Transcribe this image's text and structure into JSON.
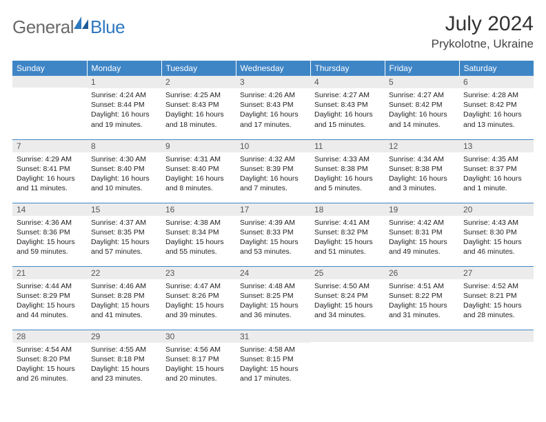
{
  "brand": {
    "part1": "General",
    "part2": "Blue"
  },
  "title": "July 2024",
  "location": "Prykolotne, Ukraine",
  "colors": {
    "header_bg": "#3e85c6",
    "header_text": "#ffffff",
    "daynum_bg": "#ececec",
    "border": "#3e85c6",
    "logo_gray": "#6a6a6a",
    "logo_blue": "#2f78bf"
  },
  "weekdays": [
    "Sunday",
    "Monday",
    "Tuesday",
    "Wednesday",
    "Thursday",
    "Friday",
    "Saturday"
  ],
  "first_weekday_index": 1,
  "days": [
    {
      "n": 1,
      "sunrise": "4:24 AM",
      "sunset": "8:44 PM",
      "daylight": "16 hours and 19 minutes."
    },
    {
      "n": 2,
      "sunrise": "4:25 AM",
      "sunset": "8:43 PM",
      "daylight": "16 hours and 18 minutes."
    },
    {
      "n": 3,
      "sunrise": "4:26 AM",
      "sunset": "8:43 PM",
      "daylight": "16 hours and 17 minutes."
    },
    {
      "n": 4,
      "sunrise": "4:27 AM",
      "sunset": "8:43 PM",
      "daylight": "16 hours and 15 minutes."
    },
    {
      "n": 5,
      "sunrise": "4:27 AM",
      "sunset": "8:42 PM",
      "daylight": "16 hours and 14 minutes."
    },
    {
      "n": 6,
      "sunrise": "4:28 AM",
      "sunset": "8:42 PM",
      "daylight": "16 hours and 13 minutes."
    },
    {
      "n": 7,
      "sunrise": "4:29 AM",
      "sunset": "8:41 PM",
      "daylight": "16 hours and 11 minutes."
    },
    {
      "n": 8,
      "sunrise": "4:30 AM",
      "sunset": "8:40 PM",
      "daylight": "16 hours and 10 minutes."
    },
    {
      "n": 9,
      "sunrise": "4:31 AM",
      "sunset": "8:40 PM",
      "daylight": "16 hours and 8 minutes."
    },
    {
      "n": 10,
      "sunrise": "4:32 AM",
      "sunset": "8:39 PM",
      "daylight": "16 hours and 7 minutes."
    },
    {
      "n": 11,
      "sunrise": "4:33 AM",
      "sunset": "8:38 PM",
      "daylight": "16 hours and 5 minutes."
    },
    {
      "n": 12,
      "sunrise": "4:34 AM",
      "sunset": "8:38 PM",
      "daylight": "16 hours and 3 minutes."
    },
    {
      "n": 13,
      "sunrise": "4:35 AM",
      "sunset": "8:37 PM",
      "daylight": "16 hours and 1 minute."
    },
    {
      "n": 14,
      "sunrise": "4:36 AM",
      "sunset": "8:36 PM",
      "daylight": "15 hours and 59 minutes."
    },
    {
      "n": 15,
      "sunrise": "4:37 AM",
      "sunset": "8:35 PM",
      "daylight": "15 hours and 57 minutes."
    },
    {
      "n": 16,
      "sunrise": "4:38 AM",
      "sunset": "8:34 PM",
      "daylight": "15 hours and 55 minutes."
    },
    {
      "n": 17,
      "sunrise": "4:39 AM",
      "sunset": "8:33 PM",
      "daylight": "15 hours and 53 minutes."
    },
    {
      "n": 18,
      "sunrise": "4:41 AM",
      "sunset": "8:32 PM",
      "daylight": "15 hours and 51 minutes."
    },
    {
      "n": 19,
      "sunrise": "4:42 AM",
      "sunset": "8:31 PM",
      "daylight": "15 hours and 49 minutes."
    },
    {
      "n": 20,
      "sunrise": "4:43 AM",
      "sunset": "8:30 PM",
      "daylight": "15 hours and 46 minutes."
    },
    {
      "n": 21,
      "sunrise": "4:44 AM",
      "sunset": "8:29 PM",
      "daylight": "15 hours and 44 minutes."
    },
    {
      "n": 22,
      "sunrise": "4:46 AM",
      "sunset": "8:28 PM",
      "daylight": "15 hours and 41 minutes."
    },
    {
      "n": 23,
      "sunrise": "4:47 AM",
      "sunset": "8:26 PM",
      "daylight": "15 hours and 39 minutes."
    },
    {
      "n": 24,
      "sunrise": "4:48 AM",
      "sunset": "8:25 PM",
      "daylight": "15 hours and 36 minutes."
    },
    {
      "n": 25,
      "sunrise": "4:50 AM",
      "sunset": "8:24 PM",
      "daylight": "15 hours and 34 minutes."
    },
    {
      "n": 26,
      "sunrise": "4:51 AM",
      "sunset": "8:22 PM",
      "daylight": "15 hours and 31 minutes."
    },
    {
      "n": 27,
      "sunrise": "4:52 AM",
      "sunset": "8:21 PM",
      "daylight": "15 hours and 28 minutes."
    },
    {
      "n": 28,
      "sunrise": "4:54 AM",
      "sunset": "8:20 PM",
      "daylight": "15 hours and 26 minutes."
    },
    {
      "n": 29,
      "sunrise": "4:55 AM",
      "sunset": "8:18 PM",
      "daylight": "15 hours and 23 minutes."
    },
    {
      "n": 30,
      "sunrise": "4:56 AM",
      "sunset": "8:17 PM",
      "daylight": "15 hours and 20 minutes."
    },
    {
      "n": 31,
      "sunrise": "4:58 AM",
      "sunset": "8:15 PM",
      "daylight": "15 hours and 17 minutes."
    }
  ],
  "labels": {
    "sunrise": "Sunrise:",
    "sunset": "Sunset:",
    "daylight": "Daylight:"
  }
}
